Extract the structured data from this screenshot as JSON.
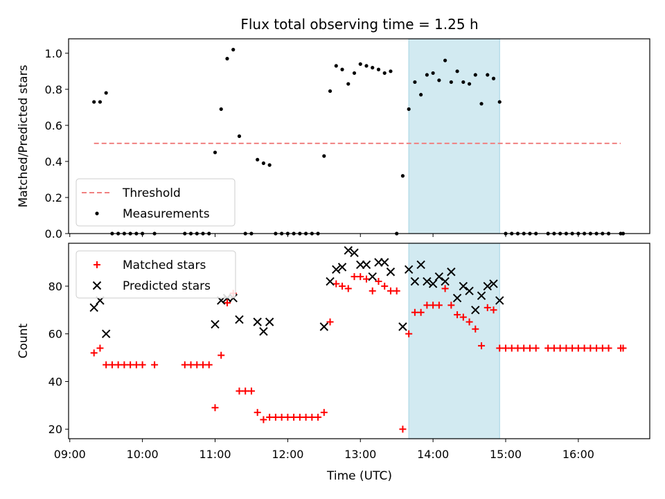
{
  "chart_data": {
    "type": "scatter",
    "title": "Flux total observing time = 1.25 h",
    "xlabel": "Time (UTC)",
    "x_ticks": [
      "09:00",
      "10:00",
      "11:00",
      "12:00",
      "13:00",
      "14:00",
      "15:00",
      "16:00"
    ],
    "xlim": [
      "08:59",
      "16:59"
    ],
    "shaded_interval": {
      "start": "13:40",
      "end": "14:55",
      "color": "#add8e6"
    },
    "panels": [
      {
        "ylabel": "Matched/Predicted stars",
        "ylim": [
          0,
          1.08
        ],
        "y_ticks": [
          0.0,
          0.2,
          0.4,
          0.6,
          0.8,
          1.0
        ],
        "legend": {
          "placement": "lower-left"
        },
        "threshold": {
          "name": "Threshold",
          "value": 0.5,
          "x_start": "09:20",
          "x_end": "16:35",
          "color": "#f08080",
          "style": "dashed"
        },
        "series": [
          {
            "name": "Measurements",
            "marker": "dot",
            "color": "#000000",
            "points": [
              [
                "09:20",
                0.73
              ],
              [
                "09:25",
                0.73
              ],
              [
                "09:30",
                0.78
              ],
              [
                "09:35",
                0
              ],
              [
                "09:40",
                0
              ],
              [
                "09:45",
                0
              ],
              [
                "09:50",
                0
              ],
              [
                "09:55",
                0
              ],
              [
                "10:00",
                0
              ],
              [
                "10:10",
                0
              ],
              [
                "10:35",
                0
              ],
              [
                "10:40",
                0
              ],
              [
                "10:45",
                0
              ],
              [
                "10:50",
                0
              ],
              [
                "10:55",
                0
              ],
              [
                "11:00",
                0.45
              ],
              [
                "11:05",
                0.69
              ],
              [
                "11:10",
                0.97
              ],
              [
                "11:15",
                1.02
              ],
              [
                "11:20",
                0.54
              ],
              [
                "11:25",
                0
              ],
              [
                "11:30",
                0
              ],
              [
                "11:35",
                0.41
              ],
              [
                "11:40",
                0.39
              ],
              [
                "11:45",
                0.38
              ],
              [
                "11:50",
                0
              ],
              [
                "11:55",
                0
              ],
              [
                "12:00",
                0
              ],
              [
                "12:05",
                0
              ],
              [
                "12:10",
                0
              ],
              [
                "12:15",
                0
              ],
              [
                "12:20",
                0
              ],
              [
                "12:25",
                0
              ],
              [
                "12:30",
                0.43
              ],
              [
                "12:35",
                0.79
              ],
              [
                "12:40",
                0.93
              ],
              [
                "12:45",
                0.91
              ],
              [
                "12:50",
                0.83
              ],
              [
                "12:55",
                0.89
              ],
              [
                "13:00",
                0.94
              ],
              [
                "13:05",
                0.93
              ],
              [
                "13:10",
                0.92
              ],
              [
                "13:15",
                0.91
              ],
              [
                "13:20",
                0.89
              ],
              [
                "13:25",
                0.9
              ],
              [
                "13:30",
                0
              ],
              [
                "13:35",
                0.32
              ],
              [
                "13:40",
                0.69
              ],
              [
                "13:45",
                0.84
              ],
              [
                "13:50",
                0.77
              ],
              [
                "13:55",
                0.88
              ],
              [
                "14:00",
                0.89
              ],
              [
                "14:05",
                0.85
              ],
              [
                "14:10",
                0.96
              ],
              [
                "14:15",
                0.84
              ],
              [
                "14:20",
                0.9
              ],
              [
                "14:25",
                0.84
              ],
              [
                "14:30",
                0.83
              ],
              [
                "14:35",
                0.88
              ],
              [
                "14:40",
                0.72
              ],
              [
                "14:45",
                0.88
              ],
              [
                "14:50",
                0.86
              ],
              [
                "14:55",
                0.73
              ],
              [
                "15:00",
                0
              ],
              [
                "15:05",
                0
              ],
              [
                "15:10",
                0
              ],
              [
                "15:15",
                0
              ],
              [
                "15:20",
                0
              ],
              [
                "15:25",
                0
              ],
              [
                "15:35",
                0
              ],
              [
                "15:40",
                0
              ],
              [
                "15:45",
                0
              ],
              [
                "15:50",
                0
              ],
              [
                "15:55",
                0
              ],
              [
                "16:00",
                0
              ],
              [
                "16:05",
                0
              ],
              [
                "16:10",
                0
              ],
              [
                "16:15",
                0
              ],
              [
                "16:20",
                0
              ],
              [
                "16:25",
                0
              ],
              [
                "16:35",
                0
              ],
              [
                "16:37",
                0
              ]
            ]
          }
        ]
      },
      {
        "ylabel": "Count",
        "ylim": [
          16,
          98
        ],
        "y_ticks": [
          20,
          40,
          60,
          80
        ],
        "legend": {
          "placement": "upper-left"
        },
        "series": [
          {
            "name": "Matched stars",
            "marker": "plus",
            "color": "#ff0000",
            "points": [
              [
                "09:20",
                52
              ],
              [
                "09:25",
                54
              ],
              [
                "09:30",
                47
              ],
              [
                "09:35",
                47
              ],
              [
                "09:40",
                47
              ],
              [
                "09:45",
                47
              ],
              [
                "09:50",
                47
              ],
              [
                "09:55",
                47
              ],
              [
                "10:00",
                47
              ],
              [
                "10:10",
                47
              ],
              [
                "10:35",
                47
              ],
              [
                "10:40",
                47
              ],
              [
                "10:45",
                47
              ],
              [
                "10:50",
                47
              ],
              [
                "10:55",
                47
              ],
              [
                "11:00",
                29
              ],
              [
                "11:05",
                51
              ],
              [
                "11:10",
                73
              ],
              [
                "11:15",
                77
              ],
              [
                "11:20",
                36
              ],
              [
                "11:25",
                36
              ],
              [
                "11:30",
                36
              ],
              [
                "11:35",
                27
              ],
              [
                "11:40",
                24
              ],
              [
                "11:45",
                25
              ],
              [
                "11:50",
                25
              ],
              [
                "11:55",
                25
              ],
              [
                "12:00",
                25
              ],
              [
                "12:05",
                25
              ],
              [
                "12:10",
                25
              ],
              [
                "12:15",
                25
              ],
              [
                "12:20",
                25
              ],
              [
                "12:25",
                25
              ],
              [
                "12:30",
                27
              ],
              [
                "12:35",
                65
              ],
              [
                "12:40",
                81
              ],
              [
                "12:45",
                80
              ],
              [
                "12:50",
                79
              ],
              [
                "12:55",
                84
              ],
              [
                "13:00",
                84
              ],
              [
                "13:05",
                83
              ],
              [
                "13:10",
                78
              ],
              [
                "13:15",
                82
              ],
              [
                "13:20",
                80
              ],
              [
                "13:25",
                78
              ],
              [
                "13:30",
                78
              ],
              [
                "13:35",
                20
              ],
              [
                "13:40",
                60
              ],
              [
                "13:45",
                69
              ],
              [
                "13:50",
                69
              ],
              [
                "13:55",
                72
              ],
              [
                "14:00",
                72
              ],
              [
                "14:05",
                72
              ],
              [
                "14:10",
                79
              ],
              [
                "14:15",
                72
              ],
              [
                "14:20",
                68
              ],
              [
                "14:25",
                67
              ],
              [
                "14:30",
                65
              ],
              [
                "14:35",
                62
              ],
              [
                "14:40",
                55
              ],
              [
                "14:45",
                71
              ],
              [
                "14:50",
                70
              ],
              [
                "14:55",
                54
              ],
              [
                "15:00",
                54
              ],
              [
                "15:05",
                54
              ],
              [
                "15:10",
                54
              ],
              [
                "15:15",
                54
              ],
              [
                "15:20",
                54
              ],
              [
                "15:25",
                54
              ],
              [
                "15:35",
                54
              ],
              [
                "15:40",
                54
              ],
              [
                "15:45",
                54
              ],
              [
                "15:50",
                54
              ],
              [
                "15:55",
                54
              ],
              [
                "16:00",
                54
              ],
              [
                "16:05",
                54
              ],
              [
                "16:10",
                54
              ],
              [
                "16:15",
                54
              ],
              [
                "16:20",
                54
              ],
              [
                "16:25",
                54
              ],
              [
                "16:35",
                54
              ],
              [
                "16:37",
                54
              ]
            ]
          },
          {
            "name": "Predicted stars",
            "marker": "x",
            "color": "#000000",
            "points": [
              [
                "09:20",
                71
              ],
              [
                "09:25",
                74
              ],
              [
                "09:30",
                60
              ],
              [
                "11:00",
                64
              ],
              [
                "11:05",
                74
              ],
              [
                "11:10",
                75
              ],
              [
                "11:15",
                75
              ],
              [
                "11:20",
                66
              ],
              [
                "11:35",
                65
              ],
              [
                "11:40",
                61
              ],
              [
                "11:45",
                65
              ],
              [
                "12:30",
                63
              ],
              [
                "12:35",
                82
              ],
              [
                "12:40",
                87
              ],
              [
                "12:45",
                88
              ],
              [
                "12:50",
                95
              ],
              [
                "12:55",
                94
              ],
              [
                "13:00",
                89
              ],
              [
                "13:05",
                89
              ],
              [
                "13:10",
                84
              ],
              [
                "13:15",
                90
              ],
              [
                "13:20",
                90
              ],
              [
                "13:25",
                86
              ],
              [
                "13:35",
                63
              ],
              [
                "13:40",
                87
              ],
              [
                "13:45",
                82
              ],
              [
                "13:50",
                89
              ],
              [
                "13:55",
                82
              ],
              [
                "14:00",
                81
              ],
              [
                "14:05",
                84
              ],
              [
                "14:10",
                82
              ],
              [
                "14:15",
                86
              ],
              [
                "14:20",
                75
              ],
              [
                "14:25",
                80
              ],
              [
                "14:30",
                78
              ],
              [
                "14:35",
                70
              ],
              [
                "14:40",
                76
              ],
              [
                "14:45",
                80
              ],
              [
                "14:50",
                81
              ],
              [
                "14:55",
                74
              ]
            ]
          }
        ]
      }
    ]
  }
}
